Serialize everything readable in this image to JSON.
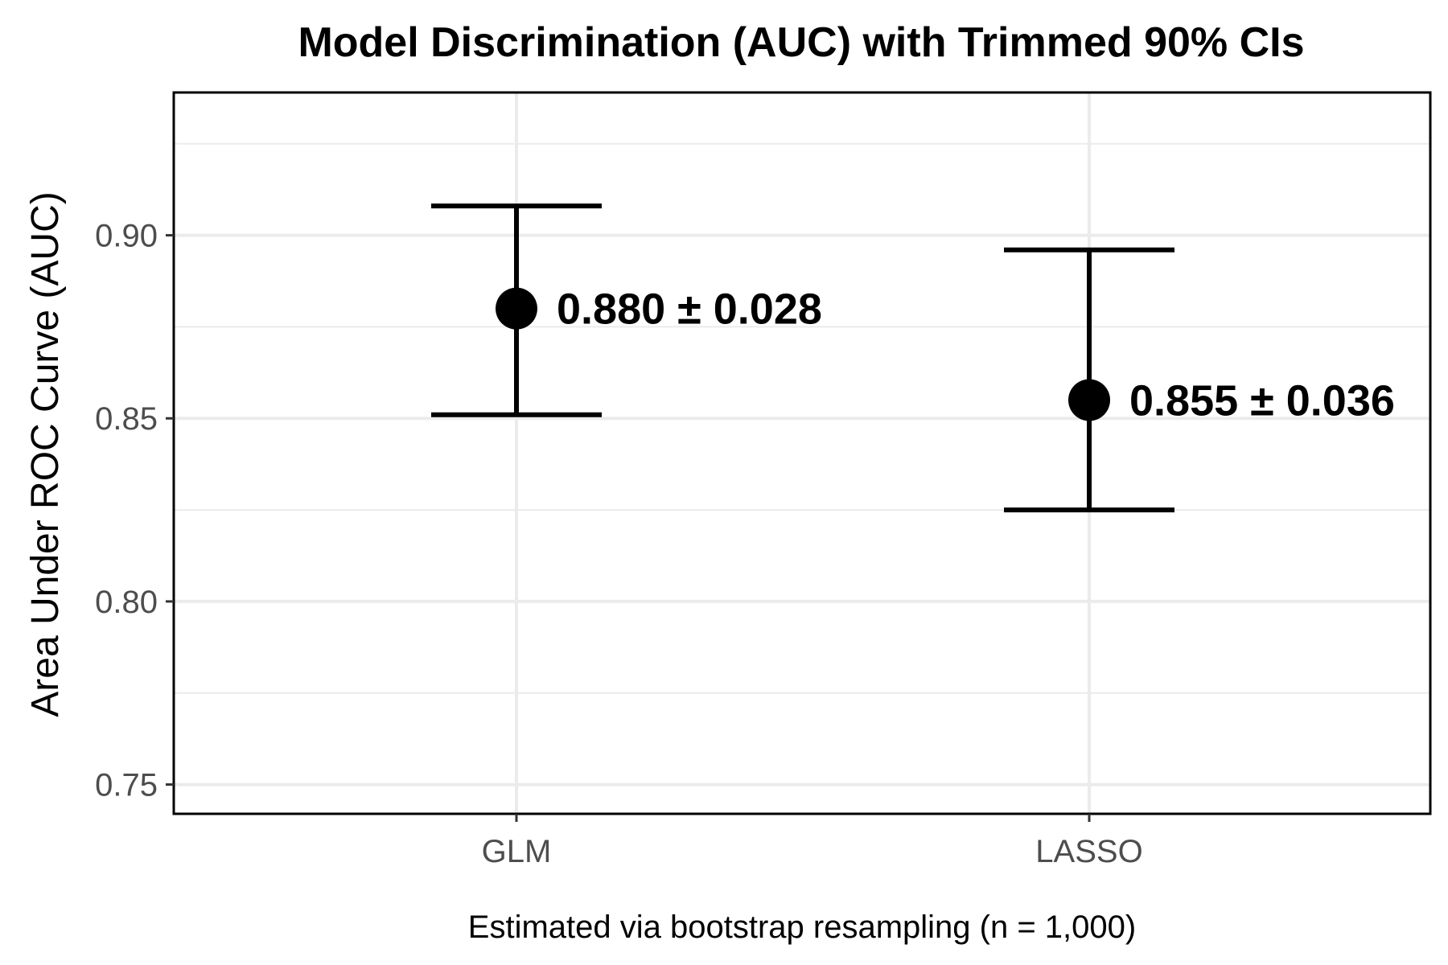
{
  "chart_data": {
    "type": "scatter",
    "title": "Model Discrimination (AUC) with Trimmed 90% CIs",
    "xlabel": "Estimated via bootstrap resampling (n = 1,000)",
    "ylabel": "Area Under ROC Curve (AUC)",
    "categories": [
      "GLM",
      "LASSO"
    ],
    "values": [
      0.88,
      0.855
    ],
    "ci_lower": [
      0.851,
      0.825
    ],
    "ci_upper": [
      0.908,
      0.896
    ],
    "labels": [
      "0.880 ± 0.028",
      "0.855 ± 0.036"
    ],
    "ylim": [
      0.742,
      0.939
    ],
    "yticks": [
      0.75,
      0.8,
      0.85,
      0.9
    ],
    "ytick_labels": [
      "0.75",
      "0.80",
      "0.85",
      "0.90"
    ],
    "grid": true,
    "legend": "none",
    "colors": {
      "points": "#000000",
      "grid": "#ebebeb",
      "ticks": "#4d4d4d",
      "border": "#000000"
    }
  }
}
